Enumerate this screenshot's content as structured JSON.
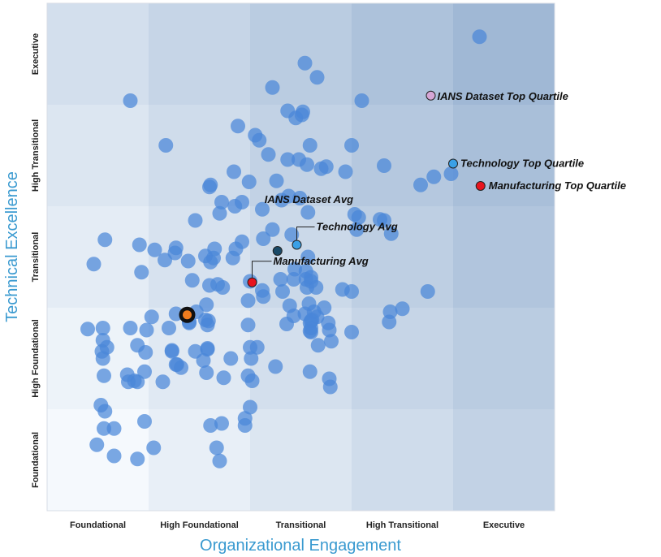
{
  "chart_data": {
    "type": "scatter",
    "xlabel": "Organizational Engagement",
    "ylabel": "Technical Excellence",
    "x_categories": [
      "Foundational",
      "High Foundational",
      "Transitional",
      "High Transitional",
      "Executive"
    ],
    "y_categories": [
      "Foundational",
      "High Foundational",
      "Transitional",
      "High Transitional",
      "Executive"
    ],
    "xlim": [
      0,
      5
    ],
    "ylim": [
      0,
      5
    ],
    "grid": false,
    "legend": "none",
    "colors": {
      "dots": "#4a86d8",
      "axis_title": "#3a9ad0",
      "highlight_ring": "#111111",
      "highlight_fill": "#f07c1e",
      "ians_avg": "#1a4a68",
      "technology_avg": "#3aa0e6",
      "manufacturing_avg": "#e8141e",
      "ians_top": "#d6a6d6",
      "technology_top": "#3aa0e6",
      "manufacturing_top": "#e8141e"
    },
    "points": [
      [
        4.26,
        4.67
      ],
      [
        2.54,
        4.41
      ],
      [
        2.66,
        4.27
      ],
      [
        2.22,
        4.17
      ],
      [
        0.82,
        4.04
      ],
      [
        3.1,
        4.04
      ],
      [
        2.37,
        3.94
      ],
      [
        2.52,
        3.93
      ],
      [
        2.51,
        3.9
      ],
      [
        2.45,
        3.87
      ],
      [
        1.88,
        3.79
      ],
      [
        2.59,
        3.6
      ],
      [
        1.17,
        3.6
      ],
      [
        3.0,
        3.6
      ],
      [
        2.05,
        3.7
      ],
      [
        2.09,
        3.65
      ],
      [
        2.18,
        3.51
      ],
      [
        2.37,
        3.46
      ],
      [
        2.48,
        3.46
      ],
      [
        2.56,
        3.41
      ],
      [
        3.32,
        3.4
      ],
      [
        2.75,
        3.39
      ],
      [
        2.7,
        3.37
      ],
      [
        2.94,
        3.34
      ],
      [
        3.81,
        3.29
      ],
      [
        3.98,
        3.32
      ],
      [
        3.68,
        3.21
      ],
      [
        1.6,
        3.19
      ],
      [
        1.61,
        3.21
      ],
      [
        1.84,
        3.34
      ],
      [
        1.99,
        3.24
      ],
      [
        2.26,
        3.25
      ],
      [
        2.31,
        3.06
      ],
      [
        2.49,
        3.08
      ],
      [
        2.38,
        3.1
      ],
      [
        1.72,
        3.04
      ],
      [
        1.85,
        3.0
      ],
      [
        1.92,
        3.04
      ],
      [
        1.7,
        2.93
      ],
      [
        2.12,
        2.97
      ],
      [
        2.57,
        2.94
      ],
      [
        1.46,
        2.86
      ],
      [
        3.03,
        2.92
      ],
      [
        3.07,
        2.89
      ],
      [
        3.28,
        2.87
      ],
      [
        3.32,
        2.86
      ],
      [
        3.05,
        2.77
      ],
      [
        3.39,
        2.73
      ],
      [
        2.41,
        2.72
      ],
      [
        2.22,
        2.77
      ],
      [
        2.13,
        2.68
      ],
      [
        1.92,
        2.65
      ],
      [
        1.65,
        2.58
      ],
      [
        1.86,
        2.58
      ],
      [
        1.83,
        2.49
      ],
      [
        1.56,
        2.51
      ],
      [
        1.61,
        2.45
      ],
      [
        0.57,
        2.67
      ],
      [
        0.91,
        2.62
      ],
      [
        1.06,
        2.57
      ],
      [
        1.26,
        2.54
      ],
      [
        1.16,
        2.47
      ],
      [
        1.39,
        2.46
      ],
      [
        1.64,
        2.49
      ],
      [
        1.27,
        2.59
      ],
      [
        0.93,
        2.35
      ],
      [
        0.46,
        2.43
      ],
      [
        1.43,
        2.27
      ],
      [
        1.6,
        2.22
      ],
      [
        1.68,
        2.23
      ],
      [
        1.73,
        2.2
      ],
      [
        2.0,
        2.26
      ],
      [
        2.12,
        2.17
      ],
      [
        1.98,
        2.07
      ],
      [
        2.32,
        2.16
      ],
      [
        2.56,
        2.2
      ],
      [
        2.39,
        2.02
      ],
      [
        2.58,
        2.04
      ],
      [
        2.91,
        2.18
      ],
      [
        3.0,
        2.16
      ],
      [
        2.73,
        2.0
      ],
      [
        2.63,
        1.96
      ],
      [
        2.43,
        1.92
      ],
      [
        2.66,
        1.91
      ],
      [
        2.77,
        1.85
      ],
      [
        3.38,
        1.96
      ],
      [
        3.5,
        1.99
      ],
      [
        2.54,
        1.94
      ],
      [
        2.61,
        1.88
      ],
      [
        2.36,
        1.84
      ],
      [
        2.6,
        1.87
      ],
      [
        2.65,
        2.2
      ],
      [
        1.4,
        1.85
      ],
      [
        1.4,
        1.86
      ],
      [
        1.56,
        1.88
      ],
      [
        2.55,
        2.28
      ],
      [
        2.6,
        2.26
      ],
      [
        2.3,
        2.28
      ],
      [
        3.75,
        2.16
      ],
      [
        3.37,
        1.86
      ],
      [
        2.55,
        2.36
      ],
      [
        2.43,
        2.28
      ],
      [
        2.6,
        2.3
      ],
      [
        2.44,
        2.38
      ],
      [
        2.57,
        2.5
      ],
      [
        2.13,
        2.11
      ],
      [
        1.59,
        1.87
      ],
      [
        1.47,
        1.96
      ],
      [
        1.27,
        1.94
      ],
      [
        1.57,
        2.03
      ],
      [
        1.03,
        1.91
      ],
      [
        1.2,
        1.8
      ],
      [
        0.82,
        1.8
      ],
      [
        0.4,
        1.79
      ],
      [
        0.55,
        1.8
      ],
      [
        0.98,
        1.78
      ],
      [
        0.55,
        1.68
      ],
      [
        0.89,
        1.63
      ],
      [
        0.54,
        1.57
      ],
      [
        1.58,
        1.83
      ],
      [
        1.98,
        1.83
      ],
      [
        2.6,
        1.8
      ],
      [
        1.58,
        1.6
      ],
      [
        1.58,
        1.59
      ],
      [
        2.0,
        1.61
      ],
      [
        2.59,
        1.85
      ],
      [
        2.59,
        1.77
      ],
      [
        2.6,
        1.76
      ],
      [
        2.78,
        1.78
      ],
      [
        2.07,
        1.61
      ],
      [
        3.0,
        1.76
      ],
      [
        2.8,
        1.67
      ],
      [
        2.67,
        1.63
      ],
      [
        1.23,
        1.58
      ],
      [
        0.97,
        1.56
      ],
      [
        1.23,
        1.57
      ],
      [
        1.32,
        1.41
      ],
      [
        0.59,
        1.61
      ],
      [
        1.54,
        1.48
      ],
      [
        2.01,
        1.5
      ],
      [
        1.81,
        1.5
      ],
      [
        0.96,
        1.37
      ],
      [
        0.55,
        1.5
      ],
      [
        0.56,
        1.33
      ],
      [
        0.79,
        1.34
      ],
      [
        0.86,
        1.28
      ],
      [
        0.89,
        1.27
      ],
      [
        0.8,
        1.27
      ],
      [
        1.14,
        1.27
      ],
      [
        1.27,
        1.44
      ],
      [
        1.28,
        1.44
      ],
      [
        1.46,
        1.57
      ],
      [
        2.25,
        1.42
      ],
      [
        1.57,
        1.36
      ],
      [
        1.74,
        1.31
      ],
      [
        1.98,
        1.33
      ],
      [
        2.02,
        1.28
      ],
      [
        2.79,
        1.22
      ],
      [
        2.59,
        1.37
      ],
      [
        2.78,
        1.3
      ],
      [
        0.53,
        1.04
      ],
      [
        0.57,
        0.98
      ],
      [
        0.96,
        0.88
      ],
      [
        0.56,
        0.81
      ],
      [
        0.66,
        0.81
      ],
      [
        0.49,
        0.65
      ],
      [
        0.66,
        0.54
      ],
      [
        0.89,
        0.51
      ],
      [
        1.05,
        0.62
      ],
      [
        1.7,
        0.49
      ],
      [
        1.67,
        0.62
      ],
      [
        2.0,
        1.02
      ],
      [
        1.95,
        0.84
      ],
      [
        1.61,
        0.84
      ],
      [
        1.72,
        0.86
      ],
      [
        1.95,
        0.91
      ]
    ],
    "highlight": {
      "x": 1.38,
      "y": 1.93
    },
    "series": [
      {
        "name": "IANS Dataset Avg",
        "x": 2.27,
        "y": 2.56,
        "label_dx": -16,
        "label_dy": -59,
        "leader": false
      },
      {
        "name": "Technology Avg",
        "x": 2.46,
        "y": 2.62,
        "label_dx": 24,
        "label_dy": -18,
        "leader": true
      },
      {
        "name": "Manufacturing Avg",
        "x": 2.02,
        "y": 2.25,
        "label_dx": 26,
        "label_dy": -22,
        "leader": true
      },
      {
        "name": "IANS Dataset Top Quartile",
        "x": 3.78,
        "y": 4.09,
        "label_dx": 8,
        "label_dy": 5,
        "leader": false
      },
      {
        "name": "Technology Top Quartile",
        "x": 4.0,
        "y": 3.42,
        "label_dx": 9,
        "label_dy": 4,
        "leader": false
      },
      {
        "name": "Manufacturing Top Quartile",
        "x": 4.27,
        "y": 3.2,
        "label_dx": 10,
        "label_dy": 4,
        "leader": false
      }
    ]
  }
}
